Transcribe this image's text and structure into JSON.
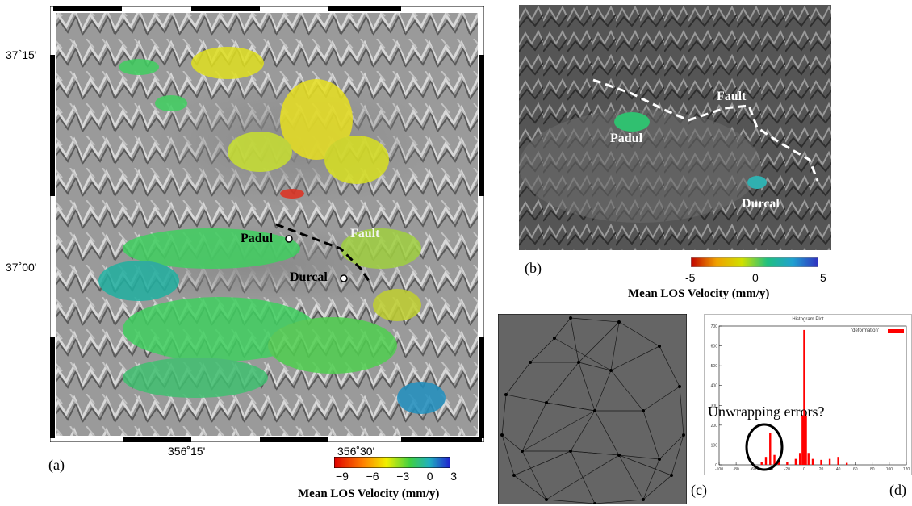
{
  "panel_a": {
    "label": "(a)",
    "lat_ticks": [
      "37˚15'",
      "37˚00'"
    ],
    "lon_ticks": [
      "356˚15'",
      "356˚30'"
    ],
    "places": {
      "padul": "Padul",
      "durcal": "Durcal",
      "fault": "Fault"
    },
    "colorbar": {
      "ticks": [
        "−9",
        "−6",
        "−3",
        "0",
        "3"
      ],
      "title": "Mean LOS Velocity (mm/y)"
    }
  },
  "panel_b": {
    "label": "(b)",
    "places": {
      "padul": "Padul",
      "durcal": "Durcal",
      "fault": "Fault"
    },
    "colorbar": {
      "ticks": [
        "-5",
        "0",
        "5"
      ],
      "title": "Mean LOS Velocity (mm/y)"
    }
  },
  "panel_c": {
    "label": "(c)"
  },
  "panel_d": {
    "label": "(d)",
    "annotation": "Unwrapping errors?",
    "chart_data": {
      "type": "bar",
      "title": "Histogram Plot",
      "legend": "'deformation'",
      "legend_color": "#ff0000",
      "ylim": [
        0,
        700
      ],
      "xlim": [
        -100,
        120
      ],
      "y_ticks": [
        "700",
        "600",
        "500",
        "400",
        "300",
        "200",
        "100",
        "0"
      ],
      "x_ticks": [
        "-100",
        "-80",
        "-60",
        "-40",
        "-20",
        "0",
        "20",
        "40",
        "60",
        "80",
        "100",
        "120"
      ],
      "x": [
        -60,
        -50,
        -45,
        -40,
        -35,
        -30,
        -20,
        -10,
        -5,
        -2,
        0,
        2,
        5,
        10,
        20,
        30,
        40,
        50
      ],
      "values": [
        5,
        15,
        40,
        160,
        50,
        20,
        15,
        30,
        60,
        250,
        680,
        250,
        60,
        30,
        25,
        30,
        40,
        10
      ]
    }
  }
}
